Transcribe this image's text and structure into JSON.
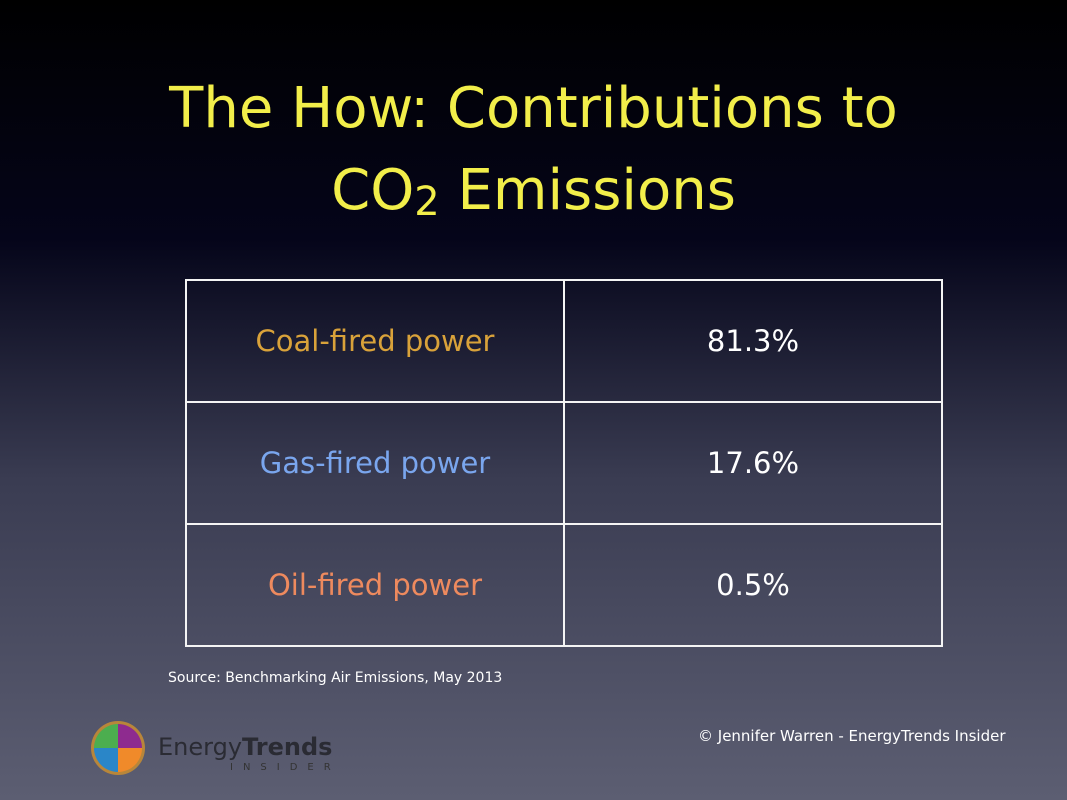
{
  "title": {
    "line1": "The How: Contributions to",
    "co": "CO",
    "sub": "2",
    "rest": " Emissions"
  },
  "table": [
    {
      "label": "Coal-fired power",
      "value": "81.3%",
      "color": "#d9a23a"
    },
    {
      "label": "Gas-fired power",
      "value": "17.6%",
      "color": "#7aa6ee"
    },
    {
      "label": "Oil-fired power",
      "value": "0.5%",
      "color": "#ee8a5e"
    }
  ],
  "source": "Source: Benchmarking Air Emissions, May 2013",
  "copyright": "© Jennifer Warren - EnergyTrends Insider",
  "logo": {
    "word1": "Energy",
    "word2": "Trends",
    "word3": "INSIDER"
  }
}
